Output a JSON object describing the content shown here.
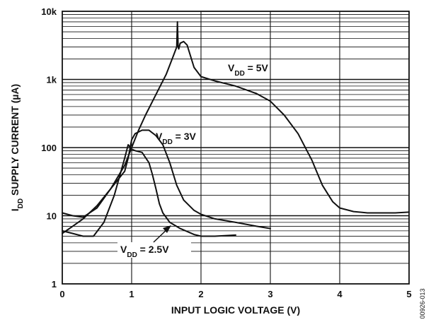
{
  "chart_data": {
    "type": "line",
    "title": "",
    "xlabel": "INPUT LOGIC VOLTAGE (V)",
    "ylabel_main": "I",
    "ylabel_sub": "DD",
    "ylabel_rest": " SUPPLY CURRENT (µA)",
    "xlim": [
      0,
      5
    ],
    "ylim": [
      1,
      10000
    ],
    "yscale": "log",
    "grid": true,
    "x_ticks": [
      {
        "value": 0,
        "label": "0"
      },
      {
        "value": 1,
        "label": "1"
      },
      {
        "value": 2,
        "label": "2"
      },
      {
        "value": 3,
        "label": "3"
      },
      {
        "value": 4,
        "label": "4"
      },
      {
        "value": 5,
        "label": "5"
      }
    ],
    "y_ticks": [
      {
        "value": 1,
        "label": "1"
      },
      {
        "value": 10,
        "label": "10"
      },
      {
        "value": 100,
        "label": "100"
      },
      {
        "value": 1000,
        "label": "1k"
      },
      {
        "value": 10000,
        "label": "10k"
      }
    ],
    "figure_id": "00926-013",
    "series": [
      {
        "color": "#111111",
        "x": [
          0,
          0.15,
          0.3,
          0.5,
          0.7,
          0.9,
          1.0,
          1.1,
          1.2,
          1.35,
          1.5,
          1.6,
          1.65,
          1.66,
          1.67,
          1.68,
          1.7,
          1.75,
          1.8,
          1.9,
          2.0,
          2.2,
          2.5,
          2.8,
          3.0,
          3.2,
          3.4,
          3.6,
          3.75,
          3.9,
          4.0,
          4.2,
          4.4,
          4.6,
          4.8,
          5.0
        ],
        "y": [
          5.5,
          7,
          9,
          14,
          25,
          55,
          100,
          180,
          300,
          600,
          1200,
          2200,
          3000,
          7000,
          3000,
          2800,
          3400,
          3600,
          3200,
          1500,
          1100,
          950,
          800,
          620,
          480,
          300,
          160,
          65,
          28,
          16,
          13,
          11.5,
          11,
          11,
          11,
          11.3
        ]
      },
      {
        "color": "#111111",
        "x": [
          0,
          0.15,
          0.3,
          0.5,
          0.7,
          0.9,
          0.95,
          1.0,
          1.05,
          1.15,
          1.25,
          1.35,
          1.45,
          1.55,
          1.65,
          1.75,
          1.9,
          2.0,
          2.2,
          2.5,
          2.8,
          3.0
        ],
        "y": [
          11,
          10,
          9.5,
          13,
          25,
          45,
          70,
          130,
          160,
          180,
          180,
          150,
          110,
          60,
          28,
          17,
          12,
          10.5,
          9,
          8,
          7,
          6.5
        ]
      },
      {
        "color": "#111111",
        "x": [
          0,
          0.15,
          0.3,
          0.45,
          0.6,
          0.75,
          0.9,
          0.95,
          1.0,
          1.05,
          1.15,
          1.25,
          1.3,
          1.35,
          1.4,
          1.45,
          1.55,
          1.7,
          1.9,
          2.0,
          2.2,
          2.5
        ],
        "y": [
          6,
          5.5,
          5,
          5,
          8,
          20,
          70,
          110,
          95,
          90,
          85,
          60,
          40,
          25,
          15,
          11,
          8,
          6.5,
          5.3,
          5,
          5,
          5.2
        ]
      }
    ],
    "annotations": [
      {
        "main": "V",
        "sub": "DD",
        "rest": " = 5V"
      },
      {
        "main": "V",
        "sub": "DD",
        "rest": " = 3V"
      },
      {
        "main": "V",
        "sub": "DD",
        "rest": " = 2.5V"
      }
    ]
  }
}
